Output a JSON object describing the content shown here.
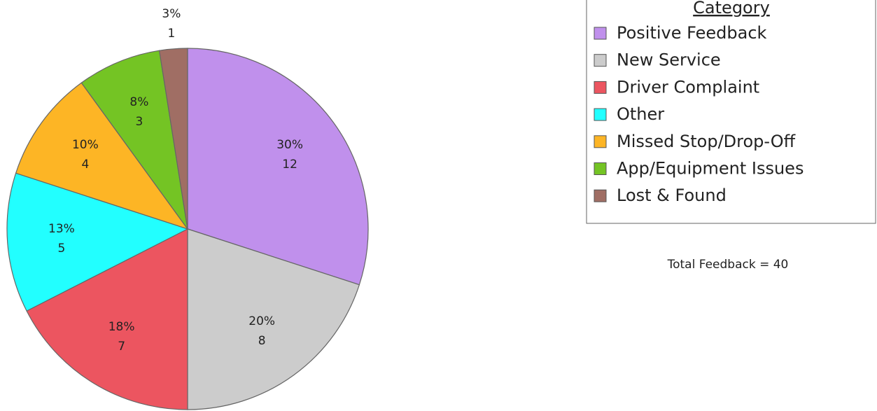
{
  "chart_data": {
    "type": "pie",
    "legend_title": "Category",
    "categories": [
      "Positive Feedback",
      "New Service",
      "Driver Complaint",
      "Other",
      "Missed Stop/Drop-Off",
      "App/Equipment Issues",
      "Lost & Found"
    ],
    "values": [
      12,
      8,
      7,
      5,
      4,
      3,
      1
    ],
    "percent_labels": [
      "30%",
      "20%",
      "18%",
      "13%",
      "10%",
      "8%",
      "3%"
    ],
    "colors": [
      "#c090ec",
      "#cccccc",
      "#ec5560",
      "#22ffff",
      "#fdb525",
      "#74c424",
      "#a06e64"
    ],
    "annotation": "Total Feedback = 40",
    "legend": "right"
  }
}
